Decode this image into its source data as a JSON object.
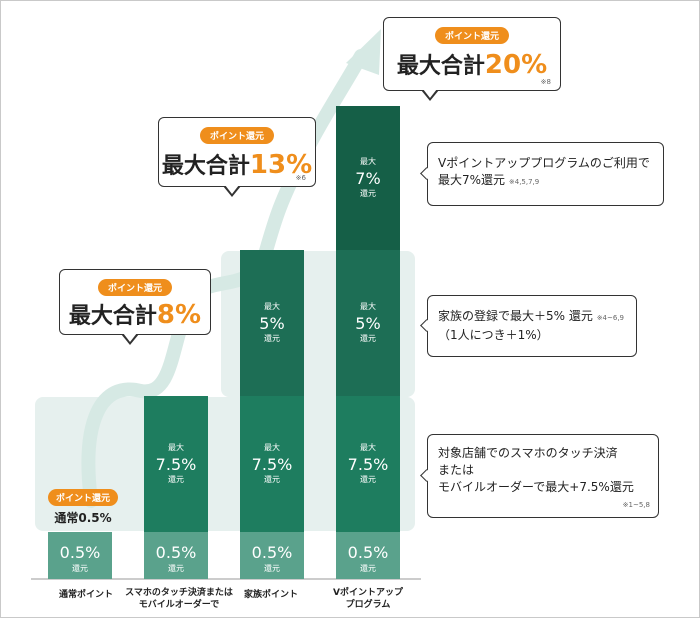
{
  "chart_data": {
    "type": "stacked-bar",
    "categories": [
      "通常ポイント",
      "スマホのタッチ決済または\nモバイルオーダーで",
      "家族ポイント",
      "Vポイントアップ\nプログラム"
    ],
    "series": [
      {
        "name": "base",
        "values": [
          0.5,
          0.5,
          0.5,
          0.5
        ],
        "color": "#5aa28c"
      },
      {
        "name": "touch",
        "values": [
          0,
          7.5,
          7.5,
          7.5
        ],
        "color": "#1e7d5f"
      },
      {
        "name": "family",
        "values": [
          0,
          0,
          5,
          5
        ],
        "color": "#1d6e55"
      },
      {
        "name": "vup",
        "values": [
          0,
          0,
          0,
          7
        ],
        "color": "#155f47"
      }
    ],
    "segment_labels": {
      "max": "最大",
      "return": "還元",
      "base": "0.5%",
      "touch": "7.5%",
      "family": "5%",
      "vup": "7%"
    },
    "totals": [
      {
        "badge": "ポイント還元",
        "prefix": "通常",
        "value": "0.5%"
      },
      {
        "badge": "ポイント還元",
        "prefix": "最大合計",
        "value": "8%"
      },
      {
        "badge": "ポイント還元",
        "prefix": "最大合計",
        "value": "13%",
        "note": "※6"
      },
      {
        "badge": "ポイント還元",
        "prefix": "最大合計",
        "value": "20%",
        "note": "※8"
      }
    ],
    "annotations": [
      {
        "line1": "Vポイントアッププログラムのご利用で",
        "line2": "最大7%還元",
        "note": "※4,5,7,9"
      },
      {
        "line1": "家族の登録で最大＋5% 還元",
        "note": "※4~6,9",
        "line2": "（1人につき＋1%）"
      },
      {
        "line1": "対象店舗でのスマホのタッチ決済",
        "line2": "または",
        "line3": "モバイルオーダーで最大+7.5%還元",
        "note": "※1~5,8"
      }
    ],
    "colors": {
      "accent": "#ef8e1c",
      "band": "#e6f0ee",
      "arrow": "#d6e9e4"
    }
  }
}
